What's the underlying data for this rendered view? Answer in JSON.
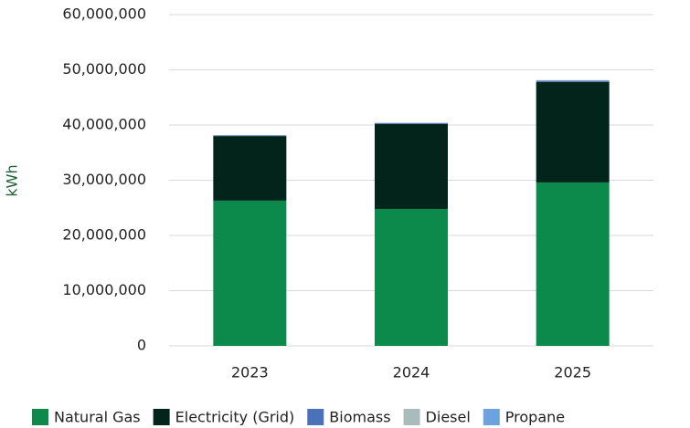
{
  "chart_data": {
    "type": "stacked_bar",
    "y_label": "kWh",
    "categories": [
      "2023",
      "2024",
      "2025"
    ],
    "series": [
      {
        "name": "Natural Gas",
        "color": "#0b8a4b",
        "values": [
          26300000,
          24800000,
          29600000
        ]
      },
      {
        "name": "Electricity (Grid)",
        "color": "#03241a",
        "values": [
          11700000,
          15400000,
          18200000
        ]
      },
      {
        "name": "Biomass",
        "color": "#4a72b8",
        "values": [
          100000,
          150000,
          250000
        ]
      },
      {
        "name": "Diesel",
        "color": "#a9bcbc",
        "values": [
          50000,
          50000,
          50000
        ]
      },
      {
        "name": "Propane",
        "color": "#6aa3e0",
        "values": [
          20000,
          20000,
          20000
        ]
      }
    ],
    "ylim": [
      0,
      60000000
    ],
    "yticks": [
      0,
      {
        "value": 10000000,
        "label": "10,000,000"
      },
      {
        "value": 20000000,
        "label": "20,000,000"
      },
      {
        "value": 30000000,
        "label": "30,000,000"
      },
      {
        "value": 40000000,
        "label": "40,000,000"
      },
      {
        "value": 50000000,
        "label": "50,000,000"
      },
      {
        "value": 60000000,
        "label": "60,000,000"
      }
    ],
    "grid": true,
    "legend": "bottom"
  }
}
